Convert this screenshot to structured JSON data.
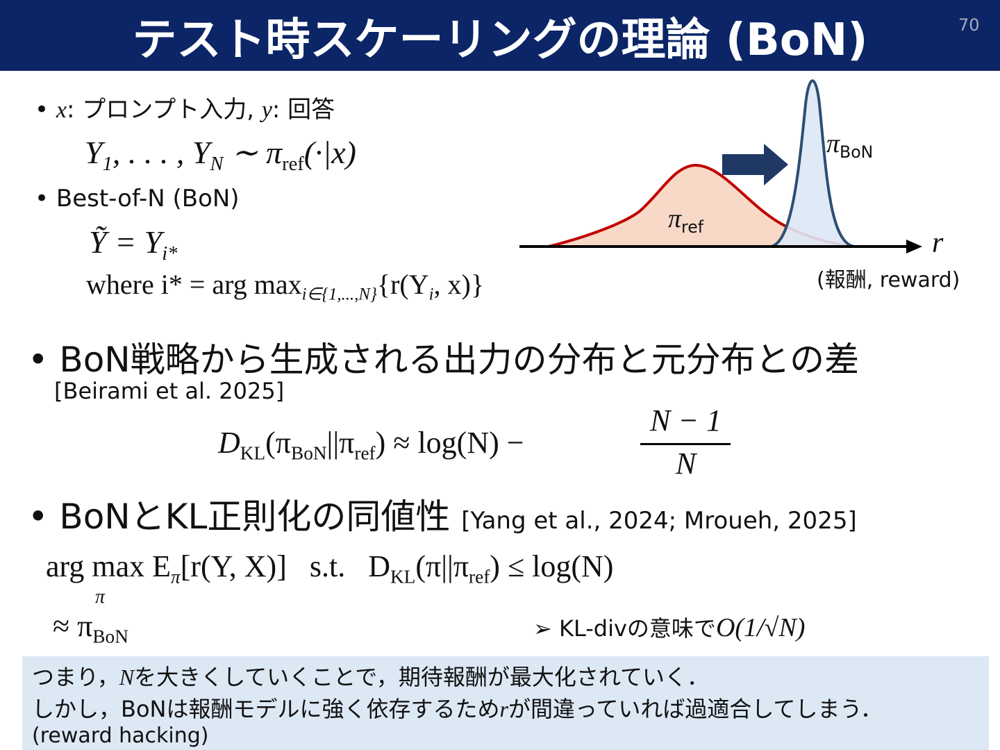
{
  "header": {
    "title": "テスト時スケーリングの理論 (BoN)",
    "page_number": "70"
  },
  "intro": {
    "line1": [
      "x",
      ": プロンプト入力, ",
      "y",
      ": 回答"
    ],
    "formula_sample": [
      "Y",
      "1",
      ", . . . , Y",
      "N",
      " ∼ π",
      "ref",
      "(·|x)"
    ],
    "bon_label": "Best-of-N (BoN)",
    "formula_select": [
      "Ỹ = Y",
      "i*"
    ],
    "formula_where": [
      "where i* = arg max",
      "i∈{1,...,N}",
      "{r(Y",
      "i",
      ", x)}"
    ]
  },
  "diagram": {
    "ref_label": [
      "π",
      "ref"
    ],
    "bon_label": [
      "π",
      "BoN"
    ],
    "axis_label": "r",
    "axis_caption": "(報酬, reward)"
  },
  "section1": {
    "heading": "BoN戦略から生成される出力の分布と元分布との差",
    "citation": "[Beirami et al. 2025]",
    "formula": [
      "D",
      "KL",
      "(π",
      "BoN",
      "||π",
      "ref",
      ") ≈ log(N) − "
    ],
    "numerator": "N − 1",
    "denominator": "N"
  },
  "section2": {
    "heading": "BoNとKL正則化の同値性",
    "citation": "[Yang et al., 2024; Mroueh, 2025]",
    "formula": [
      "arg max E",
      "π",
      "[r(Y, X)]   s.t.   D",
      "KL",
      "(π||π",
      "ref",
      ") ≤ log(N)"
    ],
    "under": "π",
    "approx": [
      "≈ π",
      "BoN"
    ],
    "note": [
      "KL-divの意味で",
      "O(1/√N)"
    ]
  },
  "summary": {
    "line1": [
      "つまり，",
      "N",
      "を大きくしていくことで，期待報酬が最大化されていく．"
    ],
    "line2": [
      "しかし，BoNは報酬モデルに強く依存するため",
      "r",
      "が間違っていれば過適合してしまう．"
    ],
    "line3": "(reward hacking)"
  }
}
